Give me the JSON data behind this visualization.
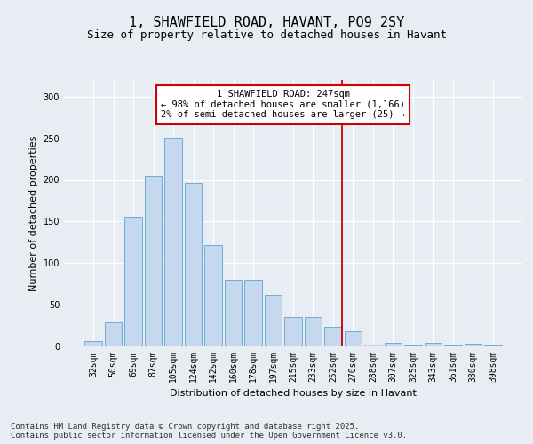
{
  "title": "1, SHAWFIELD ROAD, HAVANT, PO9 2SY",
  "subtitle": "Size of property relative to detached houses in Havant",
  "xlabel": "Distribution of detached houses by size in Havant",
  "ylabel": "Number of detached properties",
  "categories": [
    "32sqm",
    "50sqm",
    "69sqm",
    "87sqm",
    "105sqm",
    "124sqm",
    "142sqm",
    "160sqm",
    "178sqm",
    "197sqm",
    "215sqm",
    "233sqm",
    "252sqm",
    "270sqm",
    "288sqm",
    "307sqm",
    "325sqm",
    "343sqm",
    "361sqm",
    "380sqm",
    "398sqm"
  ],
  "values": [
    6,
    29,
    156,
    205,
    251,
    196,
    122,
    80,
    80,
    62,
    35,
    35,
    24,
    18,
    2,
    4,
    1,
    4,
    1,
    3,
    1
  ],
  "bar_color": "#c5d8ee",
  "bar_edge_color": "#6aaed6",
  "background_color": "#e8edf4",
  "vline_color": "#cc0000",
  "annotation_line1": "1 SHAWFIELD ROAD: 247sqm",
  "annotation_line2": "← 98% of detached houses are smaller (1,166)",
  "annotation_line3": "2% of semi-detached houses are larger (25) →",
  "annotation_box_color": "#ffffff",
  "annotation_box_edge": "#cc0000",
  "grid_color": "#ffffff",
  "footer_line1": "Contains HM Land Registry data © Crown copyright and database right 2025.",
  "footer_line2": "Contains public sector information licensed under the Open Government Licence v3.0.",
  "ylim": [
    0,
    320
  ],
  "vline_bin_index": 12,
  "title_fontsize": 11,
  "subtitle_fontsize": 9,
  "tick_fontsize": 7,
  "axis_label_fontsize": 8,
  "footer_fontsize": 6.5,
  "annotation_fontsize": 7.5
}
